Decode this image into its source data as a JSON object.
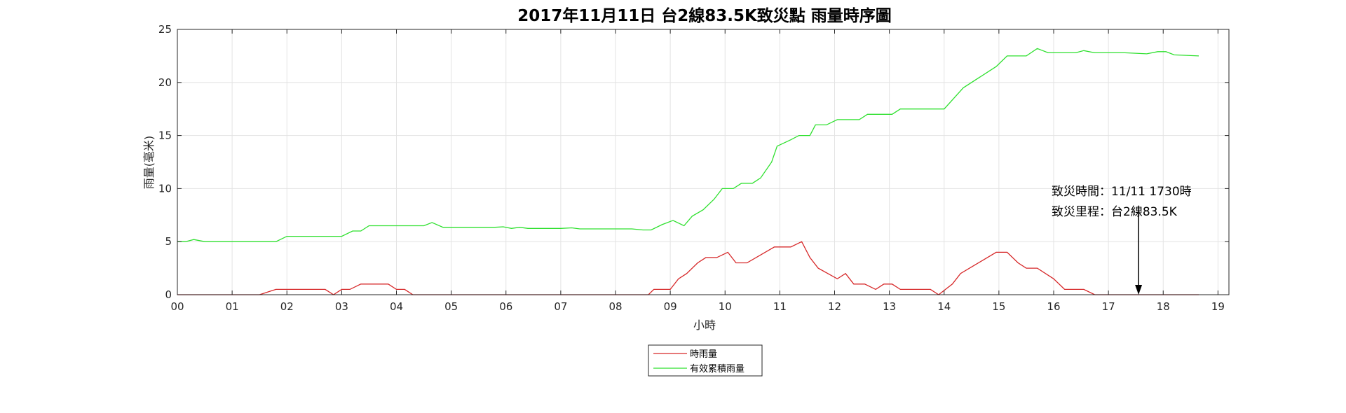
{
  "chart_data": {
    "type": "line",
    "title": "2017年11月11日 台2線83.5K致災點 雨量時序圖",
    "xlabel": "小時",
    "ylabel": "雨量(毫米)",
    "xlim": [
      0,
      19.2
    ],
    "ylim": [
      0,
      25
    ],
    "xticks": [
      0,
      1,
      2,
      3,
      4,
      5,
      6,
      7,
      8,
      9,
      10,
      11,
      12,
      13,
      14,
      15,
      16,
      17,
      18,
      19
    ],
    "xtick_labels": [
      "00",
      "01",
      "02",
      "03",
      "04",
      "05",
      "06",
      "07",
      "08",
      "09",
      "10",
      "11",
      "12",
      "13",
      "14",
      "15",
      "16",
      "17",
      "18",
      "19"
    ],
    "yticks": [
      0,
      5,
      10,
      15,
      20,
      25
    ],
    "ytick_labels": [
      "0",
      "5",
      "10",
      "15",
      "20",
      "25"
    ],
    "grid": true,
    "legend_position": "bottom-center",
    "series": [
      {
        "name": "時雨量",
        "color": "#d62728",
        "points": [
          [
            0,
            0
          ],
          [
            1.5,
            0
          ],
          [
            1.8,
            0.5
          ],
          [
            2.2,
            0.5
          ],
          [
            2.7,
            0.5
          ],
          [
            2.85,
            0
          ],
          [
            3.0,
            0.5
          ],
          [
            3.15,
            0.5
          ],
          [
            3.35,
            1
          ],
          [
            3.85,
            1
          ],
          [
            4.0,
            0.5
          ],
          [
            4.15,
            0.5
          ],
          [
            4.3,
            0
          ],
          [
            8.6,
            0
          ],
          [
            8.7,
            0.5
          ],
          [
            9.0,
            0.5
          ],
          [
            9.15,
            1.5
          ],
          [
            9.3,
            2
          ],
          [
            9.5,
            3
          ],
          [
            9.65,
            3.5
          ],
          [
            9.85,
            3.5
          ],
          [
            10.05,
            4
          ],
          [
            10.2,
            3
          ],
          [
            10.4,
            3
          ],
          [
            10.9,
            4.5
          ],
          [
            11.2,
            4.5
          ],
          [
            11.4,
            5
          ],
          [
            11.55,
            3.5
          ],
          [
            11.7,
            2.5
          ],
          [
            12.05,
            1.5
          ],
          [
            12.2,
            2
          ],
          [
            12.35,
            1
          ],
          [
            12.55,
            1
          ],
          [
            12.75,
            0.5
          ],
          [
            12.9,
            1
          ],
          [
            13.05,
            1
          ],
          [
            13.2,
            0.5
          ],
          [
            13.75,
            0.5
          ],
          [
            13.9,
            0
          ],
          [
            14.15,
            1
          ],
          [
            14.3,
            2
          ],
          [
            14.95,
            4
          ],
          [
            15.15,
            4
          ],
          [
            15.35,
            3
          ],
          [
            15.5,
            2.5
          ],
          [
            15.7,
            2.5
          ],
          [
            16.0,
            1.5
          ],
          [
            16.2,
            0.5
          ],
          [
            16.55,
            0.5
          ],
          [
            16.75,
            0
          ],
          [
            18.65,
            0
          ]
        ]
      },
      {
        "name": "有效累積雨量",
        "color": "#2ee02e",
        "points": [
          [
            0,
            5
          ],
          [
            0.15,
            5
          ],
          [
            0.3,
            5.2
          ],
          [
            0.5,
            5
          ],
          [
            1.8,
            5
          ],
          [
            2.0,
            5.5
          ],
          [
            3.0,
            5.5
          ],
          [
            3.2,
            6
          ],
          [
            3.35,
            6
          ],
          [
            3.5,
            6.5
          ],
          [
            4.0,
            6.5
          ],
          [
            4.5,
            6.5
          ],
          [
            4.65,
            6.8
          ],
          [
            4.85,
            6.35
          ],
          [
            5.8,
            6.35
          ],
          [
            5.95,
            6.4
          ],
          [
            6.1,
            6.25
          ],
          [
            6.25,
            6.35
          ],
          [
            6.4,
            6.25
          ],
          [
            7.0,
            6.25
          ],
          [
            7.2,
            6.3
          ],
          [
            7.35,
            6.2
          ],
          [
            8.3,
            6.2
          ],
          [
            8.5,
            6.1
          ],
          [
            8.65,
            6.1
          ],
          [
            8.85,
            6.6
          ],
          [
            9.05,
            7
          ],
          [
            9.25,
            6.5
          ],
          [
            9.4,
            7.4
          ],
          [
            9.6,
            8
          ],
          [
            9.8,
            9
          ],
          [
            9.95,
            10
          ],
          [
            10.15,
            10
          ],
          [
            10.3,
            10.5
          ],
          [
            10.5,
            10.5
          ],
          [
            10.65,
            11
          ],
          [
            10.85,
            12.5
          ],
          [
            10.95,
            14
          ],
          [
            11.2,
            14.6
          ],
          [
            11.35,
            15
          ],
          [
            11.55,
            15
          ],
          [
            11.65,
            16
          ],
          [
            11.85,
            16
          ],
          [
            12.05,
            16.5
          ],
          [
            12.45,
            16.5
          ],
          [
            12.6,
            17
          ],
          [
            13.05,
            17
          ],
          [
            13.2,
            17.5
          ],
          [
            14.0,
            17.5
          ],
          [
            14.35,
            19.5
          ],
          [
            14.95,
            21.5
          ],
          [
            15.15,
            22.5
          ],
          [
            15.5,
            22.5
          ],
          [
            15.7,
            23.2
          ],
          [
            15.9,
            22.8
          ],
          [
            16.4,
            22.8
          ],
          [
            16.55,
            23
          ],
          [
            16.75,
            22.8
          ],
          [
            17.3,
            22.8
          ],
          [
            17.7,
            22.7
          ],
          [
            17.9,
            22.9
          ],
          [
            18.05,
            22.9
          ],
          [
            18.2,
            22.6
          ],
          [
            18.65,
            22.5
          ]
        ]
      }
    ],
    "annotation": {
      "lines": [
        "致災時間：11/11 1730時",
        "致災里程：台2線83.5K"
      ],
      "arrow_from": [
        17.55,
        8.3
      ],
      "arrow_to": [
        17.55,
        0
      ]
    }
  }
}
